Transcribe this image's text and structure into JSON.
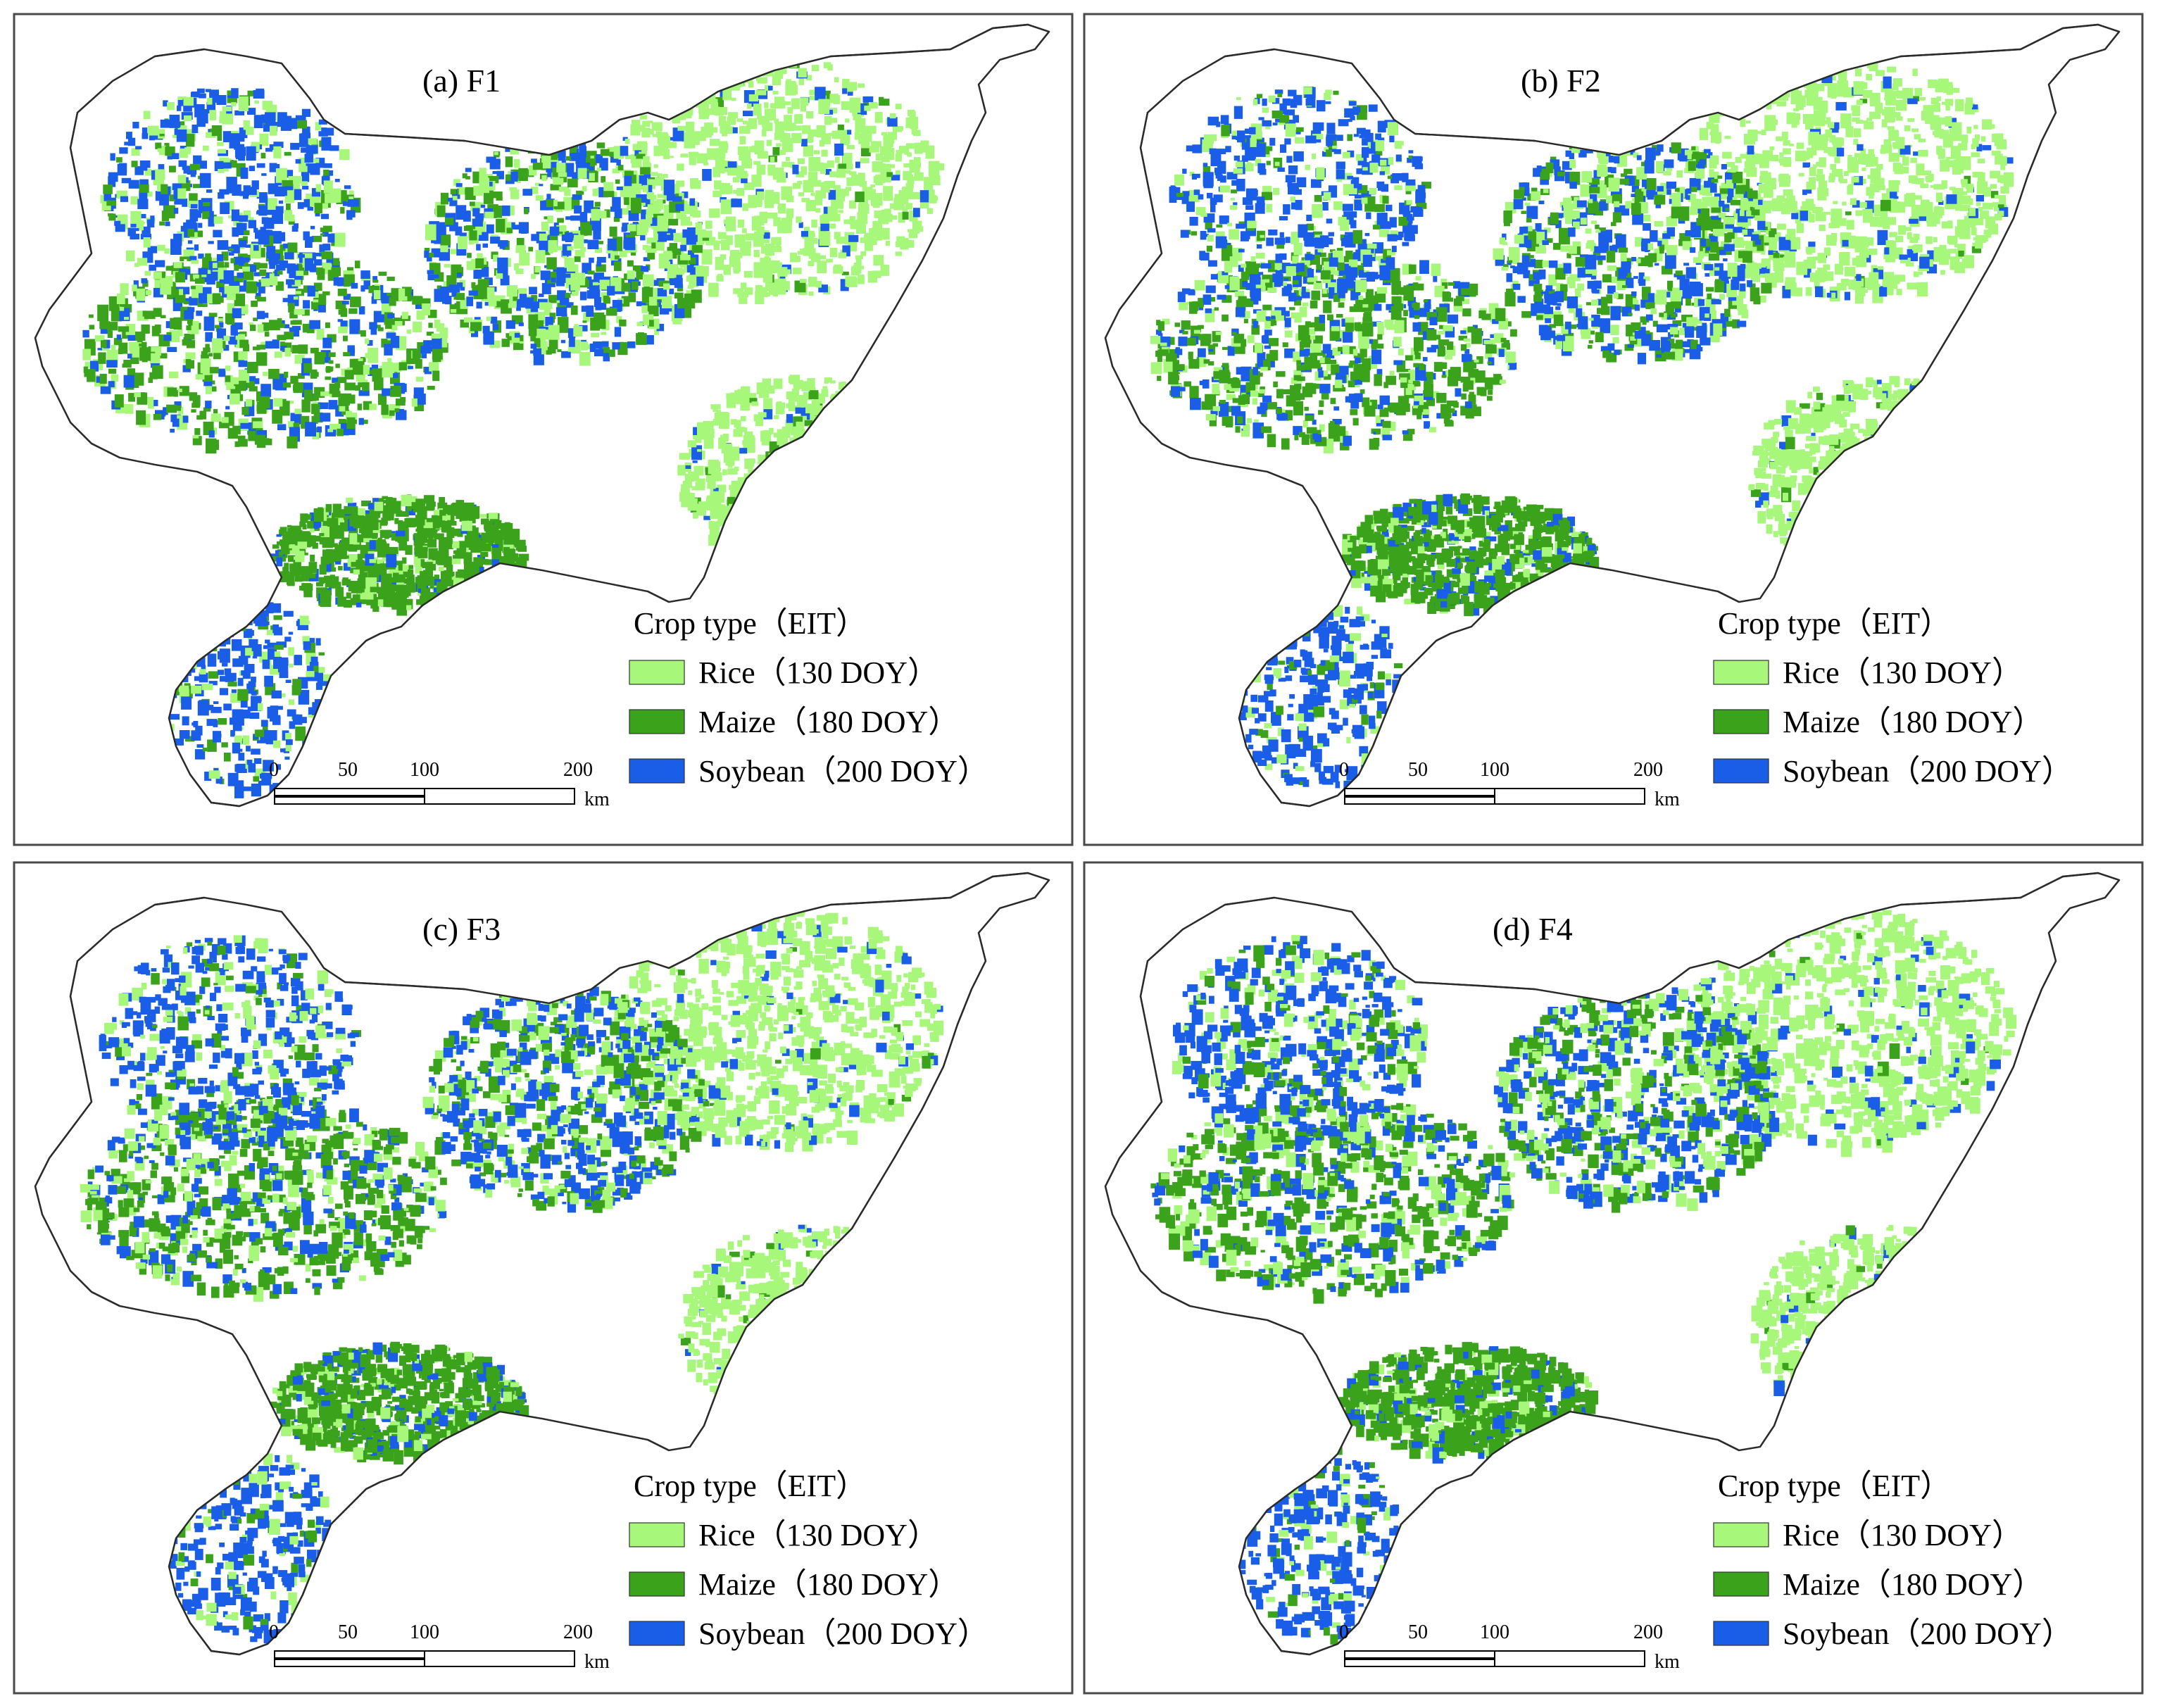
{
  "colors": {
    "rice": "#a6f77a",
    "maize": "#3aa31b",
    "soybean": "#1a5ee8",
    "background": "#ffffff",
    "outline": "#2b2b2b"
  },
  "legend": {
    "title": "Crop type（EIT）",
    "items": [
      {
        "key": "rice",
        "label": "Rice（130 DOY）"
      },
      {
        "key": "maize",
        "label": "Maize（180 DOY）"
      },
      {
        "key": "soybean",
        "label": "Soybean（200 DOY）"
      }
    ]
  },
  "scale_bar": {
    "ticks": [
      "0",
      "50",
      "100",
      "200"
    ],
    "tick_values_km": [
      0,
      50,
      100,
      200
    ],
    "unit": "km"
  },
  "panels": [
    {
      "id": "F1",
      "title": "(a) F1"
    },
    {
      "id": "F2",
      "title": "(b) F2"
    },
    {
      "id": "F3",
      "title": "(c) F3"
    },
    {
      "id": "F4",
      "title": "(d) F4"
    }
  ]
}
